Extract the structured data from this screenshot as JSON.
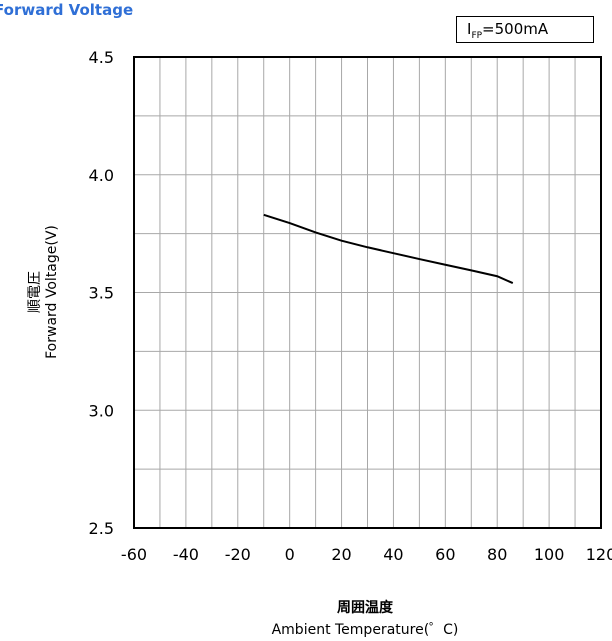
{
  "chart_data": {
    "type": "line",
    "title": "Forward Voltage",
    "condition": {
      "symbol": "I",
      "sub": "FP",
      "value": "=500mA"
    },
    "xlabel": {
      "jp": "周囲温度",
      "en": "Ambient Temperature(゜C)"
    },
    "ylabel": {
      "jp": "順電圧",
      "en": "Forward Voltage(V)"
    },
    "xlim": [
      -60,
      120
    ],
    "ylim": [
      2.5,
      4.5
    ],
    "x_ticks": [
      "-60",
      "-40",
      "-20",
      "0",
      "20",
      "40",
      "60",
      "80",
      "100",
      "120"
    ],
    "y_ticks": [
      "2.5",
      "3.0",
      "3.5",
      "4.0",
      "4.5"
    ],
    "grid": true,
    "series": [
      {
        "x": [
          -10,
          0,
          10,
          20,
          30,
          40,
          50,
          60,
          70,
          80,
          86
        ],
        "y": [
          3.83,
          3.795,
          3.755,
          3.72,
          3.692,
          3.667,
          3.642,
          3.618,
          3.594,
          3.569,
          3.54
        ]
      }
    ],
    "line_color": "#000000"
  }
}
